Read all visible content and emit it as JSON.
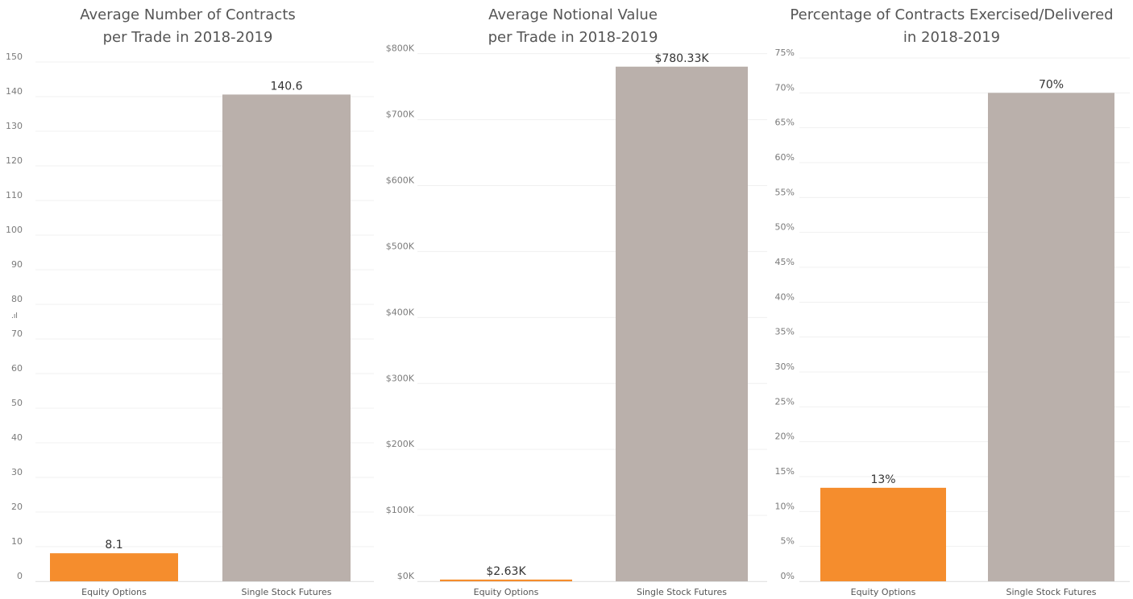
{
  "chart_data": [
    {
      "type": "bar",
      "title": [
        "Average Number of Contracts",
        "per Trade in 2018-2019"
      ],
      "categories": [
        "Equity Options",
        "Single Stock Futures"
      ],
      "values": [
        8.1,
        140.6
      ],
      "value_labels": [
        "8.1",
        "140.6"
      ],
      "colors": [
        "#F58D2D",
        "#BAB0AB"
      ],
      "ylim": [
        0,
        150
      ],
      "yticks": [
        0,
        10,
        20,
        30,
        40,
        50,
        60,
        70,
        80,
        90,
        100,
        110,
        120,
        130,
        140,
        150
      ],
      "ytick_labels": [
        "0",
        "10",
        "20",
        "30",
        "40",
        "50",
        "60",
        "70",
        "80",
        "90",
        "100",
        "110",
        "120",
        "130",
        "140",
        "150"
      ],
      "xlabel": "",
      "ylabel": "",
      "grid": true
    },
    {
      "type": "bar",
      "title": [
        "Average Notional Value",
        "per Trade in 2018-2019"
      ],
      "categories": [
        "Equity Options",
        "Single Stock Futures"
      ],
      "values": [
        2630,
        780330
      ],
      "value_labels": [
        "$2.63K",
        "$780.33K"
      ],
      "colors": [
        "#F58D2D",
        "#BAB0AB"
      ],
      "ylim": [
        0,
        835000
      ],
      "yticks": [
        0,
        100000,
        200000,
        300000,
        400000,
        500000,
        600000,
        700000,
        800000
      ],
      "ytick_labels": [
        "$0K",
        "$100K",
        "$200K",
        "$300K",
        "$400K",
        "$500K",
        "$600K",
        "$700K",
        "$800K"
      ],
      "xlabel": "",
      "ylabel": "",
      "grid": true
    },
    {
      "type": "bar",
      "title": [
        "Percentage of Contracts Exercised/Delivered",
        "in 2018-2019"
      ],
      "categories": [
        "Equity Options",
        "Single Stock Futures"
      ],
      "values": [
        13.4,
        70
      ],
      "value_labels": [
        "13%",
        "70%"
      ],
      "colors": [
        "#F58D2D",
        "#BAB0AB"
      ],
      "ylim": [
        0,
        75
      ],
      "yticks": [
        0,
        5,
        10,
        15,
        20,
        25,
        30,
        35,
        40,
        45,
        50,
        55,
        60,
        65,
        70,
        75
      ],
      "ytick_labels": [
        "0%",
        "5%",
        "10%",
        "15%",
        "20%",
        "25%",
        "30%",
        "35%",
        "40%",
        "45%",
        "50%",
        "55%",
        "60%",
        "65%",
        "70%",
        "75%"
      ],
      "xlabel": "",
      "ylabel": "",
      "grid": true
    }
  ],
  "misc": {
    "icon_glyph": ".ıl",
    "icon_name": "bar-chart-icon"
  }
}
